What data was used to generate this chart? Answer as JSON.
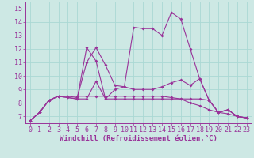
{
  "xlabel": "Windchill (Refroidissement éolien,°C)",
  "background_color": "#cde8e4",
  "grid_color": "#aad8d4",
  "line_color": "#993399",
  "axis_line_color": "#993399",
  "xlim": [
    -0.5,
    23.5
  ],
  "ylim": [
    6.5,
    15.5
  ],
  "xticks": [
    0,
    1,
    2,
    3,
    4,
    5,
    6,
    7,
    8,
    9,
    10,
    11,
    12,
    13,
    14,
    15,
    16,
    17,
    18,
    19,
    20,
    21,
    22,
    23
  ],
  "yticks": [
    7,
    8,
    9,
    10,
    11,
    12,
    13,
    14,
    15
  ],
  "series": [
    [
      6.7,
      7.3,
      8.2,
      8.5,
      8.4,
      8.3,
      8.3,
      9.6,
      8.3,
      9.0,
      9.2,
      13.6,
      13.5,
      13.5,
      13.0,
      14.7,
      14.2,
      12.0,
      9.8,
      8.2,
      7.3,
      7.5,
      7.0,
      6.9
    ],
    [
      6.7,
      7.3,
      8.2,
      8.5,
      8.4,
      8.3,
      12.1,
      11.1,
      8.3,
      8.3,
      8.3,
      8.3,
      8.3,
      8.3,
      8.3,
      8.3,
      8.3,
      8.3,
      8.3,
      8.2,
      7.3,
      7.5,
      7.0,
      6.9
    ],
    [
      6.7,
      7.3,
      8.2,
      8.5,
      8.5,
      8.4,
      11.0,
      12.1,
      10.8,
      9.3,
      9.2,
      9.0,
      9.0,
      9.0,
      9.2,
      9.5,
      9.7,
      9.3,
      9.8,
      8.2,
      7.3,
      7.5,
      7.0,
      6.9
    ],
    [
      6.7,
      7.3,
      8.2,
      8.5,
      8.5,
      8.5,
      8.5,
      8.5,
      8.5,
      8.5,
      8.5,
      8.5,
      8.5,
      8.5,
      8.5,
      8.4,
      8.3,
      8.0,
      7.8,
      7.5,
      7.3,
      7.2,
      7.0,
      6.9
    ]
  ],
  "tick_fontsize": 6.0,
  "xlabel_fontsize": 6.5,
  "marker_size": 2.0,
  "line_width": 0.8
}
